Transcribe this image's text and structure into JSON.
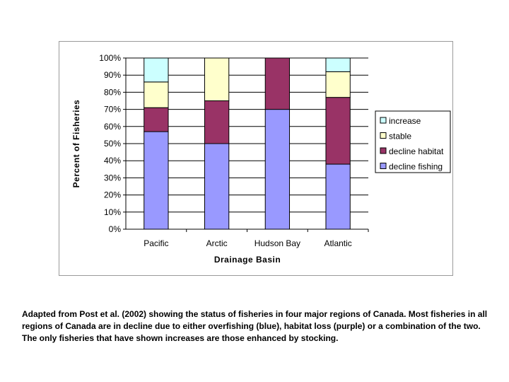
{
  "chart_data": {
    "type": "bar",
    "stacked": true,
    "percent_stacked": true,
    "title": "",
    "xlabel": "Drainage Basin",
    "ylabel": "Percent of Fisheries",
    "ylim": [
      0,
      100
    ],
    "yticks": [
      "0%",
      "10%",
      "20%",
      "30%",
      "40%",
      "50%",
      "60%",
      "70%",
      "80%",
      "90%",
      "100%"
    ],
    "categories": [
      "Pacific",
      "Arctic",
      "Hudson Bay",
      "Atlantic"
    ],
    "series": [
      {
        "name": "decline fishing",
        "color": "#9999ff",
        "values": [
          57,
          50,
          70,
          38
        ]
      },
      {
        "name": "decline habitat",
        "color": "#993366",
        "values": [
          14,
          25,
          30,
          39
        ]
      },
      {
        "name": "stable",
        "color": "#ffffcc",
        "values": [
          15,
          25,
          0,
          15
        ]
      },
      {
        "name": "increase",
        "color": "#ccffff",
        "values": [
          14,
          0,
          0,
          8
        ]
      }
    ],
    "legend_order": [
      "increase",
      "stable",
      "decline habitat",
      "decline fishing"
    ],
    "legend_position": "right",
    "grid": true
  },
  "caption": "Adapted from Post et al. (2002) showing the status of fisheries in four major regions of Canada. Most fisheries in all regions of Canada are in decline due to either overfishing (blue), habitat loss (purple) or a combination of the two. The only fisheries that have shown increases are those enhanced by stocking."
}
